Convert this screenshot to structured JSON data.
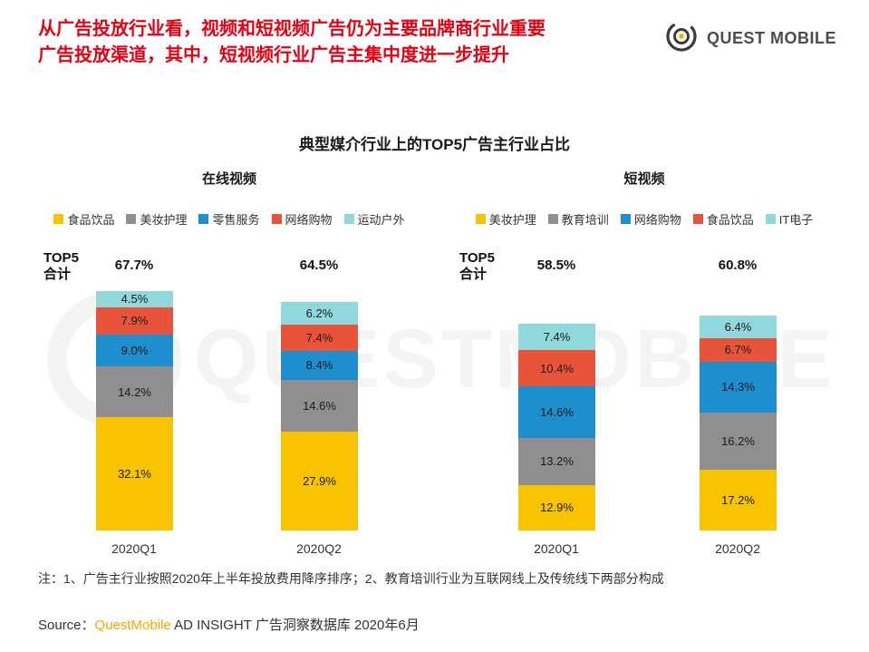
{
  "header": {
    "title_line1": "从广告投放行业看，视频和短视频广告仍为主要品牌商行业重要",
    "title_line2": "广告投放渠道，其中，短视频行业广告主集中度进一步提升",
    "logo_text": "QUEST MOBILE"
  },
  "chart_main_title": "典型媒介行业上的TOP5广告主行业占比",
  "labels": {
    "top5_line1": "TOP5",
    "top5_line2": "合计"
  },
  "watermark_text": "QUESTMOBILE",
  "colors": {
    "yellow": "#F8C301",
    "gray": "#8F8F8F",
    "blue": "#1E8FCE",
    "red": "#E8543A",
    "teal": "#8FD8DB",
    "title_red": "#E60012",
    "brand_orange": "#F7A600"
  },
  "chart_data": [
    {
      "type": "bar",
      "stacked": true,
      "title": "在线视频",
      "unit": "%",
      "categories": [
        "2020Q1",
        "2020Q2"
      ],
      "totals": [
        "67.7%",
        "64.5%"
      ],
      "series": [
        {
          "name": "食品饮品",
          "color": "#F8C301",
          "values": [
            32.1,
            27.9
          ]
        },
        {
          "name": "美妆护理",
          "color": "#8F8F8F",
          "values": [
            14.2,
            14.6
          ]
        },
        {
          "name": "零售服务",
          "color": "#1E8FCE",
          "values": [
            9.0,
            8.4
          ]
        },
        {
          "name": "网络购物",
          "color": "#E8543A",
          "values": [
            7.9,
            7.4
          ]
        },
        {
          "name": "运动户外",
          "color": "#8FD8DB",
          "values": [
            4.5,
            6.2
          ]
        }
      ]
    },
    {
      "type": "bar",
      "stacked": true,
      "title": "短视频",
      "unit": "%",
      "categories": [
        "2020Q1",
        "2020Q2"
      ],
      "totals": [
        "58.5%",
        "60.8%"
      ],
      "series": [
        {
          "name": "美妆护理",
          "color": "#F8C301",
          "values": [
            12.9,
            17.2
          ]
        },
        {
          "name": "教育培训",
          "color": "#8F8F8F",
          "values": [
            13.2,
            16.2
          ]
        },
        {
          "name": "网络购物",
          "color": "#1E8FCE",
          "values": [
            14.6,
            14.3
          ]
        },
        {
          "name": "食品饮品",
          "color": "#E8543A",
          "values": [
            10.4,
            6.7
          ]
        },
        {
          "name": "IT电子",
          "color": "#8FD8DB",
          "values": [
            7.4,
            6.4
          ]
        }
      ]
    }
  ],
  "footnote": "注：1、广告主行业按照2020年上半年投放费用降序排序；2、教育培训行业为互联网线上及传统线下两部分构成",
  "source": {
    "prefix": "Source：",
    "brand": "QuestMobile",
    "suffix": " AD INSIGHT 广告洞察数据库 2020年6月"
  }
}
